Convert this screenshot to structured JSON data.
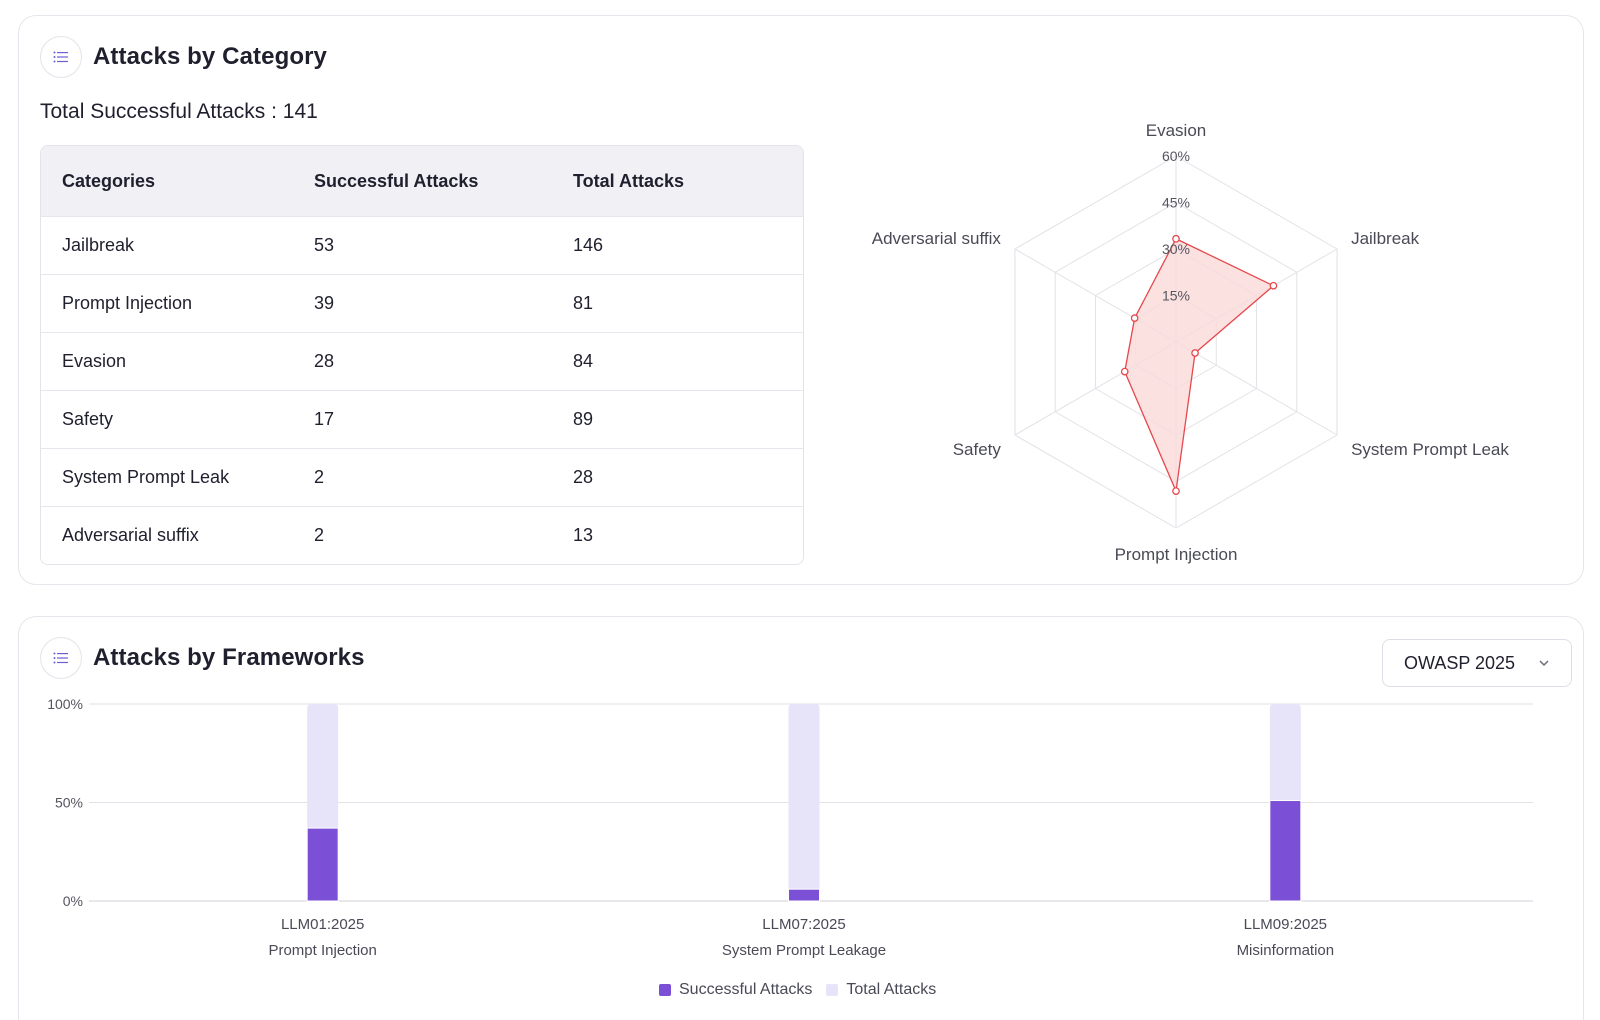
{
  "category_card": {
    "title": "Attacks by Category",
    "icon": "list-icon",
    "total_label": "Total Successful Attacks : 141",
    "table": {
      "headers": [
        "Categories",
        "Successful Attacks",
        "Total Attacks"
      ],
      "rows": [
        [
          "Jailbreak",
          "53",
          "146"
        ],
        [
          "Prompt Injection",
          "39",
          "81"
        ],
        [
          "Evasion",
          "28",
          "84"
        ],
        [
          "Safety",
          "17",
          "89"
        ],
        [
          "System Prompt Leak",
          "2",
          "28"
        ],
        [
          "Adversarial suffix",
          "2",
          "13"
        ]
      ]
    }
  },
  "frameworks_card": {
    "title": "Attacks by Frameworks",
    "icon": "list-icon",
    "dropdown": {
      "selected": "OWASP 2025",
      "icon": "chevron-down-icon"
    },
    "legend": [
      "Successful Attacks",
      "Total Attacks"
    ]
  },
  "colors": {
    "radar_line": "#e5484d",
    "radar_fill": "#fbdada",
    "bar_success": "#7b4fd6",
    "bar_total": "#e7e3f8",
    "grid": "#e2e2e8"
  },
  "chart_data": [
    {
      "type": "radar",
      "axes": [
        "Evasion",
        "Jailbreak",
        "System Prompt Leak",
        "Prompt Injection",
        "Safety",
        "Adversarial suffix"
      ],
      "ticks": [
        "15%",
        "30%",
        "45%",
        "60%"
      ],
      "range": [
        0,
        60
      ],
      "values": [
        33.3,
        36.3,
        7.1,
        48.1,
        19.1,
        15.4
      ]
    },
    {
      "type": "bar",
      "categories": [
        {
          "code": "LLM01:2025",
          "name": "Prompt Injection"
        },
        {
          "code": "LLM07:2025",
          "name": "System Prompt Leakage"
        },
        {
          "code": "LLM09:2025",
          "name": "Misinformation"
        }
      ],
      "y_ticks": [
        "0%",
        "50%",
        "100%"
      ],
      "ylim": [
        0,
        100
      ],
      "series": [
        {
          "name": "Successful Attacks",
          "values": [
            37,
            6,
            51
          ]
        },
        {
          "name": "Total Attacks",
          "values": [
            100,
            100,
            100
          ]
        }
      ],
      "legend_position": "bottom"
    }
  ]
}
